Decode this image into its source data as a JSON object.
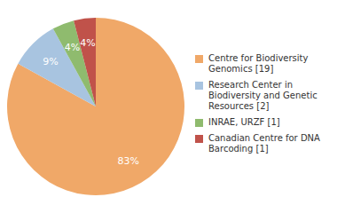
{
  "chart_data": {
    "type": "pie",
    "categories": [
      "Centre for Biodiversity\nGenomics [19]",
      "Research Center in\nBiodiversity and Genetic\nResources [2]",
      "INRAE, URZF [1]",
      "Canadian Centre for DNA\nBarcoding [1]"
    ],
    "values": [
      83,
      9,
      4,
      4
    ],
    "value_labels": [
      "83%",
      "9%",
      "4%",
      "4%"
    ],
    "colors": [
      "#f0a868",
      "#a8c4e0",
      "#8fbb6e",
      "#c0524a"
    ],
    "data_labels": true,
    "legend": "right"
  }
}
